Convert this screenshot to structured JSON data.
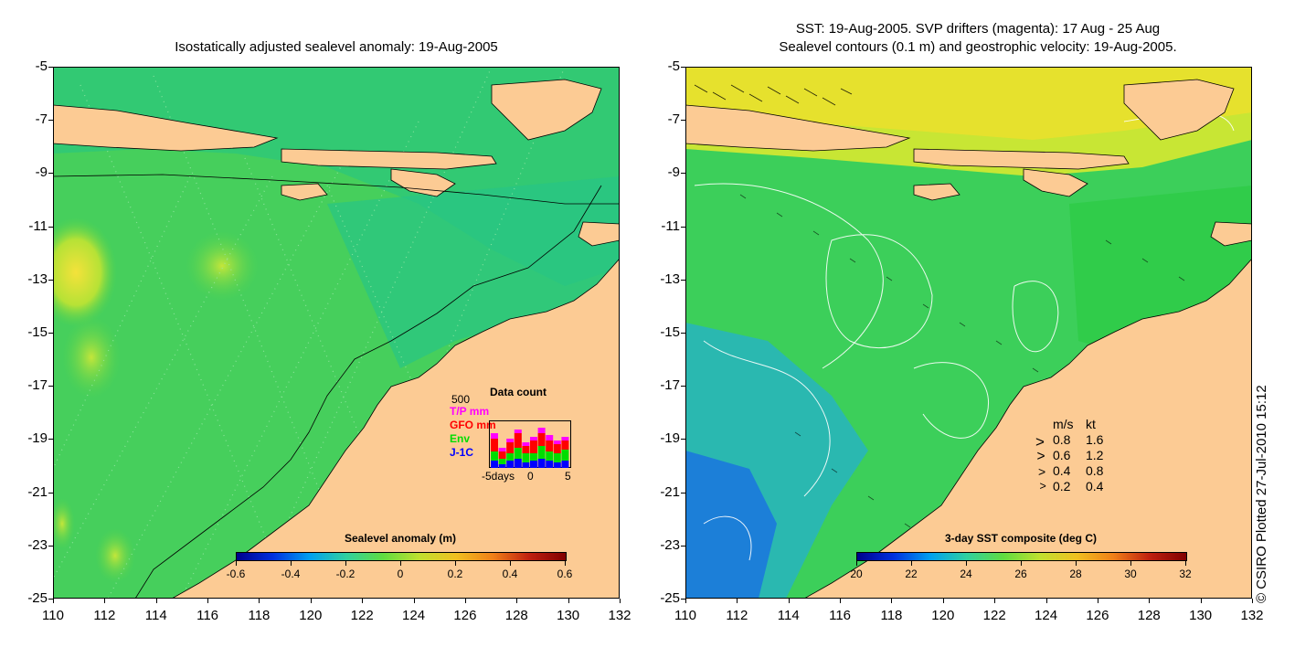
{
  "left_panel": {
    "title": "Isostatically adjusted sealevel anomaly: 19-Aug-2005",
    "colorbar": {
      "title": "Sealevel anomaly (m)",
      "ticks": [
        "-0.6",
        "-0.4",
        "-0.2",
        "0",
        "0.2",
        "0.4",
        "0.6"
      ]
    },
    "data_count": {
      "title": "Data count",
      "max_label": "500",
      "series": [
        {
          "name": "T/P mm",
          "color": "#ff00ff"
        },
        {
          "name": "GFO mm",
          "color": "#ff0000"
        },
        {
          "name": "Env",
          "color": "#00dd00"
        },
        {
          "name": "J-1C",
          "color": "#0000ff"
        }
      ],
      "x_tick_labels": [
        "-5days",
        "0",
        "5"
      ]
    }
  },
  "right_panel": {
    "title_line1": "SST: 19-Aug-2005. SVP drifters (magenta): 17 Aug - 25 Aug",
    "title_line2": "Sealevel contours (0.1 m) and geostrophic velocity: 19-Aug-2005.",
    "colorbar": {
      "title": "3-day SST composite (deg C)",
      "ticks": [
        "20",
        "22",
        "24",
        "26",
        "28",
        "30",
        "32"
      ]
    },
    "velocity_legend": {
      "header_ms": "m/s",
      "header_kt": "kt",
      "rows": [
        {
          "ms": "0.8",
          "kt": "1.6"
        },
        {
          "ms": "0.6",
          "kt": "1.2"
        },
        {
          "ms": "0.4",
          "kt": "0.8"
        },
        {
          "ms": "0.2",
          "kt": "0.4"
        }
      ]
    }
  },
  "axes": {
    "y_ticks": [
      "-5",
      "-7",
      "-9",
      "-11",
      "-13",
      "-15",
      "-17",
      "-19",
      "-21",
      "-23",
      "-25"
    ],
    "x_ticks": [
      "110",
      "112",
      "114",
      "116",
      "118",
      "120",
      "122",
      "124",
      "126",
      "128",
      "130",
      "132"
    ]
  },
  "credit": "© CSIRO Plotted 27-Jul-2010 15:12",
  "colors": {
    "land": "#fccb94",
    "sea_mid": "#3cd25a",
    "sea_anomaly_high": "#f0e632"
  }
}
